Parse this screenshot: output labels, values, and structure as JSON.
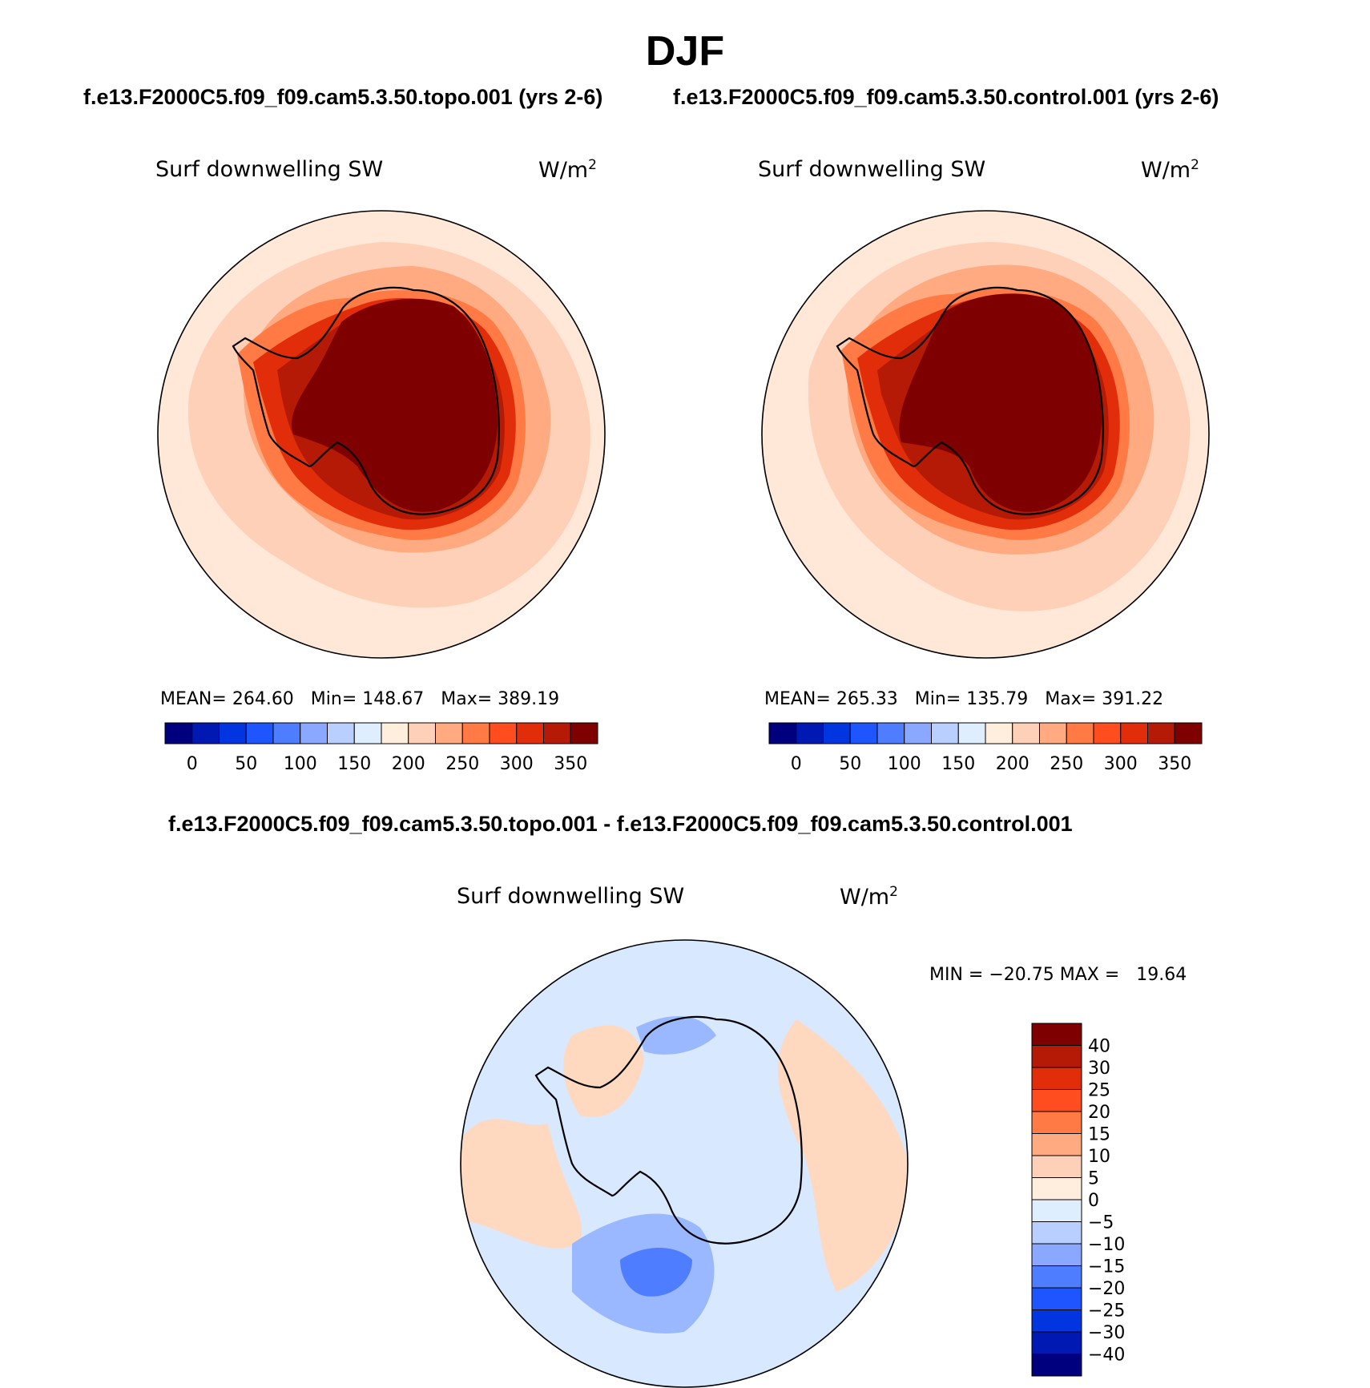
{
  "header": {
    "season": "DJF",
    "left_case": "f.e13.F2000C5.f09_f09.cam5.3.50.topo.001 (yrs 2-6)",
    "right_case": "f.e13.F2000C5.f09_f09.cam5.3.50.control.001 (yrs 2-6)",
    "diff_title": "f.e13.F2000C5.f09_f09.cam5.3.50.topo.001 - f.e13.F2000C5.f09_f09.cam5.3.50.control.001"
  },
  "panels": [
    {
      "id": "topo",
      "variable": "Surf downwelling SW",
      "units": "W/m",
      "units_sup": "2",
      "mean_label": "MEAN=",
      "mean": "264.60",
      "min_label": "Min=",
      "min": "148.67",
      "max_label": "Max=",
      "max": "389.19"
    },
    {
      "id": "control",
      "variable": "Surf downwelling SW",
      "units": "W/m",
      "units_sup": "2",
      "mean_label": "MEAN=",
      "mean": "265.33",
      "min_label": "Min=",
      "min": "135.79",
      "max_label": "Max=",
      "max": "391.22"
    }
  ],
  "diff_panel": {
    "variable": "Surf downwelling SW",
    "units": "W/m",
    "units_sup": "2",
    "minmax": "MIN = −20.75 MAX =   19.64"
  },
  "colorbar_abs": {
    "colors": [
      "#00007f",
      "#0019b3",
      "#0035e0",
      "#1f55ff",
      "#4f7dff",
      "#8aa8ff",
      "#b9cfff",
      "#deeeff",
      "#ffeedd",
      "#ffd0b8",
      "#ffaa80",
      "#ff7a45",
      "#ff4d1f",
      "#e22d0a",
      "#b41a05",
      "#7f0000"
    ],
    "tick_labels": [
      "0",
      "50",
      "100",
      "150",
      "200",
      "250",
      "300",
      "350"
    ]
  },
  "colorbar_diff": {
    "colors": [
      "#7f0000",
      "#b41a05",
      "#e22d0a",
      "#ff4d1f",
      "#ff7a45",
      "#ffaa80",
      "#ffd0b8",
      "#ffeedd",
      "#deeeff",
      "#b9cfff",
      "#8aa8ff",
      "#4f7dff",
      "#1f55ff",
      "#0035e0",
      "#0019b3",
      "#00007f"
    ],
    "tick_labels": [
      "40",
      "30",
      "25",
      "20",
      "15",
      "10",
      "5",
      "0",
      "−5",
      "−10",
      "−15",
      "−20",
      "−25",
      "−30",
      "−40"
    ]
  },
  "map_colors": {
    "ocean_outer": "#ffe8d8",
    "ocean_mid": "#ffd0b8",
    "ocean_inner": "#ffaa80",
    "coast_band": "#ff7a45",
    "near_coast": "#e22d0a",
    "ice_margin": "#b41a05",
    "interior": "#7f0000",
    "diff_base": "#d8e8ff",
    "diff_pos": "#ffd8c0",
    "diff_neg": "#9ab8ff",
    "diff_strong_neg": "#4f7dff"
  }
}
